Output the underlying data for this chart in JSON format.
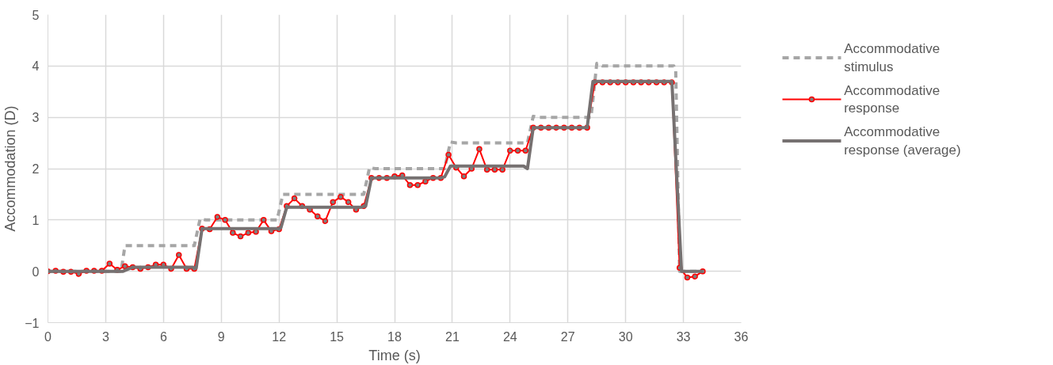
{
  "chart_data": {
    "type": "line",
    "xlabel": "Time (s)",
    "ylabel": "Accommodation (D)",
    "xlim": [
      0,
      36
    ],
    "xticks": [
      0,
      3,
      6,
      9,
      12,
      15,
      18,
      21,
      24,
      27,
      30,
      33,
      36
    ],
    "ylim": [
      -1,
      5
    ],
    "yticks": [
      -1,
      0,
      1,
      2,
      3,
      4,
      5
    ],
    "grid": true,
    "legend": "right",
    "series": [
      {
        "name": "Accommodative stimulus",
        "color": "#a6a6a6",
        "line_style": "dashed",
        "marker": "none",
        "x": [
          0,
          3.8,
          4.0,
          4.3,
          7.6,
          7.9,
          8.2,
          11.9,
          12.2,
          12.5,
          16.4,
          16.7,
          17.0,
          20.6,
          20.9,
          21.2,
          24.9,
          25.2,
          25.5,
          28.2,
          28.5,
          28.8,
          32.5,
          32.6,
          32.8,
          34
        ],
        "values": [
          0,
          0,
          0.5,
          0.5,
          0.5,
          1.02,
          1.0,
          1.0,
          1.5,
          1.5,
          1.5,
          2.02,
          2.0,
          2.0,
          2.52,
          2.5,
          2.5,
          3.02,
          3.0,
          3.0,
          4.05,
          4.0,
          4.0,
          3.9,
          0,
          0
        ]
      },
      {
        "name": "Accommodative response",
        "color": "#ff0000",
        "line_style": "solid",
        "marker": "circle",
        "x": [
          0,
          0.4,
          0.8,
          1.2,
          1.6,
          2.0,
          2.4,
          2.8,
          3.2,
          3.6,
          4.0,
          4.4,
          4.8,
          5.2,
          5.6,
          6.0,
          6.4,
          6.8,
          7.2,
          7.6,
          8.0,
          8.4,
          8.8,
          9.2,
          9.6,
          10.0,
          10.4,
          10.8,
          11.2,
          11.6,
          12.0,
          12.4,
          12.8,
          13.2,
          13.6,
          14.0,
          14.4,
          14.8,
          15.2,
          15.6,
          16.0,
          16.4,
          16.8,
          17.2,
          17.6,
          18.0,
          18.4,
          18.8,
          19.2,
          19.6,
          20.0,
          20.4,
          20.8,
          21.2,
          21.6,
          22.0,
          22.4,
          22.8,
          23.2,
          23.6,
          24.0,
          24.4,
          24.8,
          25.2,
          25.6,
          26.0,
          26.4,
          26.8,
          27.2,
          27.6,
          28.0,
          28.4,
          28.8,
          29.2,
          29.6,
          30.0,
          30.4,
          30.8,
          31.2,
          31.6,
          32.0,
          32.4,
          32.8,
          33.2,
          33.6,
          34.0
        ],
        "values": [
          0,
          0.01,
          -0.01,
          -0.01,
          -0.05,
          0.01,
          0.01,
          0.01,
          0.15,
          0.03,
          0.1,
          0.08,
          0.05,
          0.08,
          0.13,
          0.13,
          0.05,
          0.32,
          0.05,
          0.05,
          0.83,
          0.82,
          1.06,
          1.0,
          0.75,
          0.68,
          0.75,
          0.77,
          1.0,
          0.78,
          0.82,
          1.27,
          1.42,
          1.27,
          1.2,
          1.07,
          0.98,
          1.35,
          1.45,
          1.35,
          1.2,
          1.27,
          1.82,
          1.82,
          1.82,
          1.85,
          1.87,
          1.68,
          1.68,
          1.75,
          1.82,
          1.82,
          2.27,
          2.02,
          1.85,
          2.0,
          2.38,
          1.98,
          1.98,
          1.98,
          2.35,
          2.35,
          2.35,
          2.8,
          2.8,
          2.8,
          2.8,
          2.8,
          2.8,
          2.8,
          2.8,
          3.68,
          3.68,
          3.68,
          3.68,
          3.68,
          3.68,
          3.68,
          3.68,
          3.68,
          3.68,
          3.68,
          0.07,
          -0.12,
          -0.1,
          0.0
        ]
      },
      {
        "name": "Accommodative response (average)",
        "color": "#767171",
        "line_style": "solid",
        "marker": "none",
        "x": [
          0,
          3.9,
          4.4,
          7.5,
          7.7,
          8.0,
          11.9,
          12.1,
          12.4,
          16.3,
          16.5,
          16.8,
          20.4,
          20.6,
          20.9,
          24.7,
          24.9,
          25.2,
          28.0,
          28.3,
          32.4,
          32.9,
          34
        ],
        "values": [
          0,
          0,
          0.08,
          0.08,
          0.06,
          0.83,
          0.83,
          0.85,
          1.25,
          1.25,
          1.27,
          1.82,
          1.82,
          1.84,
          2.05,
          2.05,
          2.0,
          2.8,
          2.8,
          3.7,
          3.7,
          0,
          0
        ]
      }
    ]
  }
}
